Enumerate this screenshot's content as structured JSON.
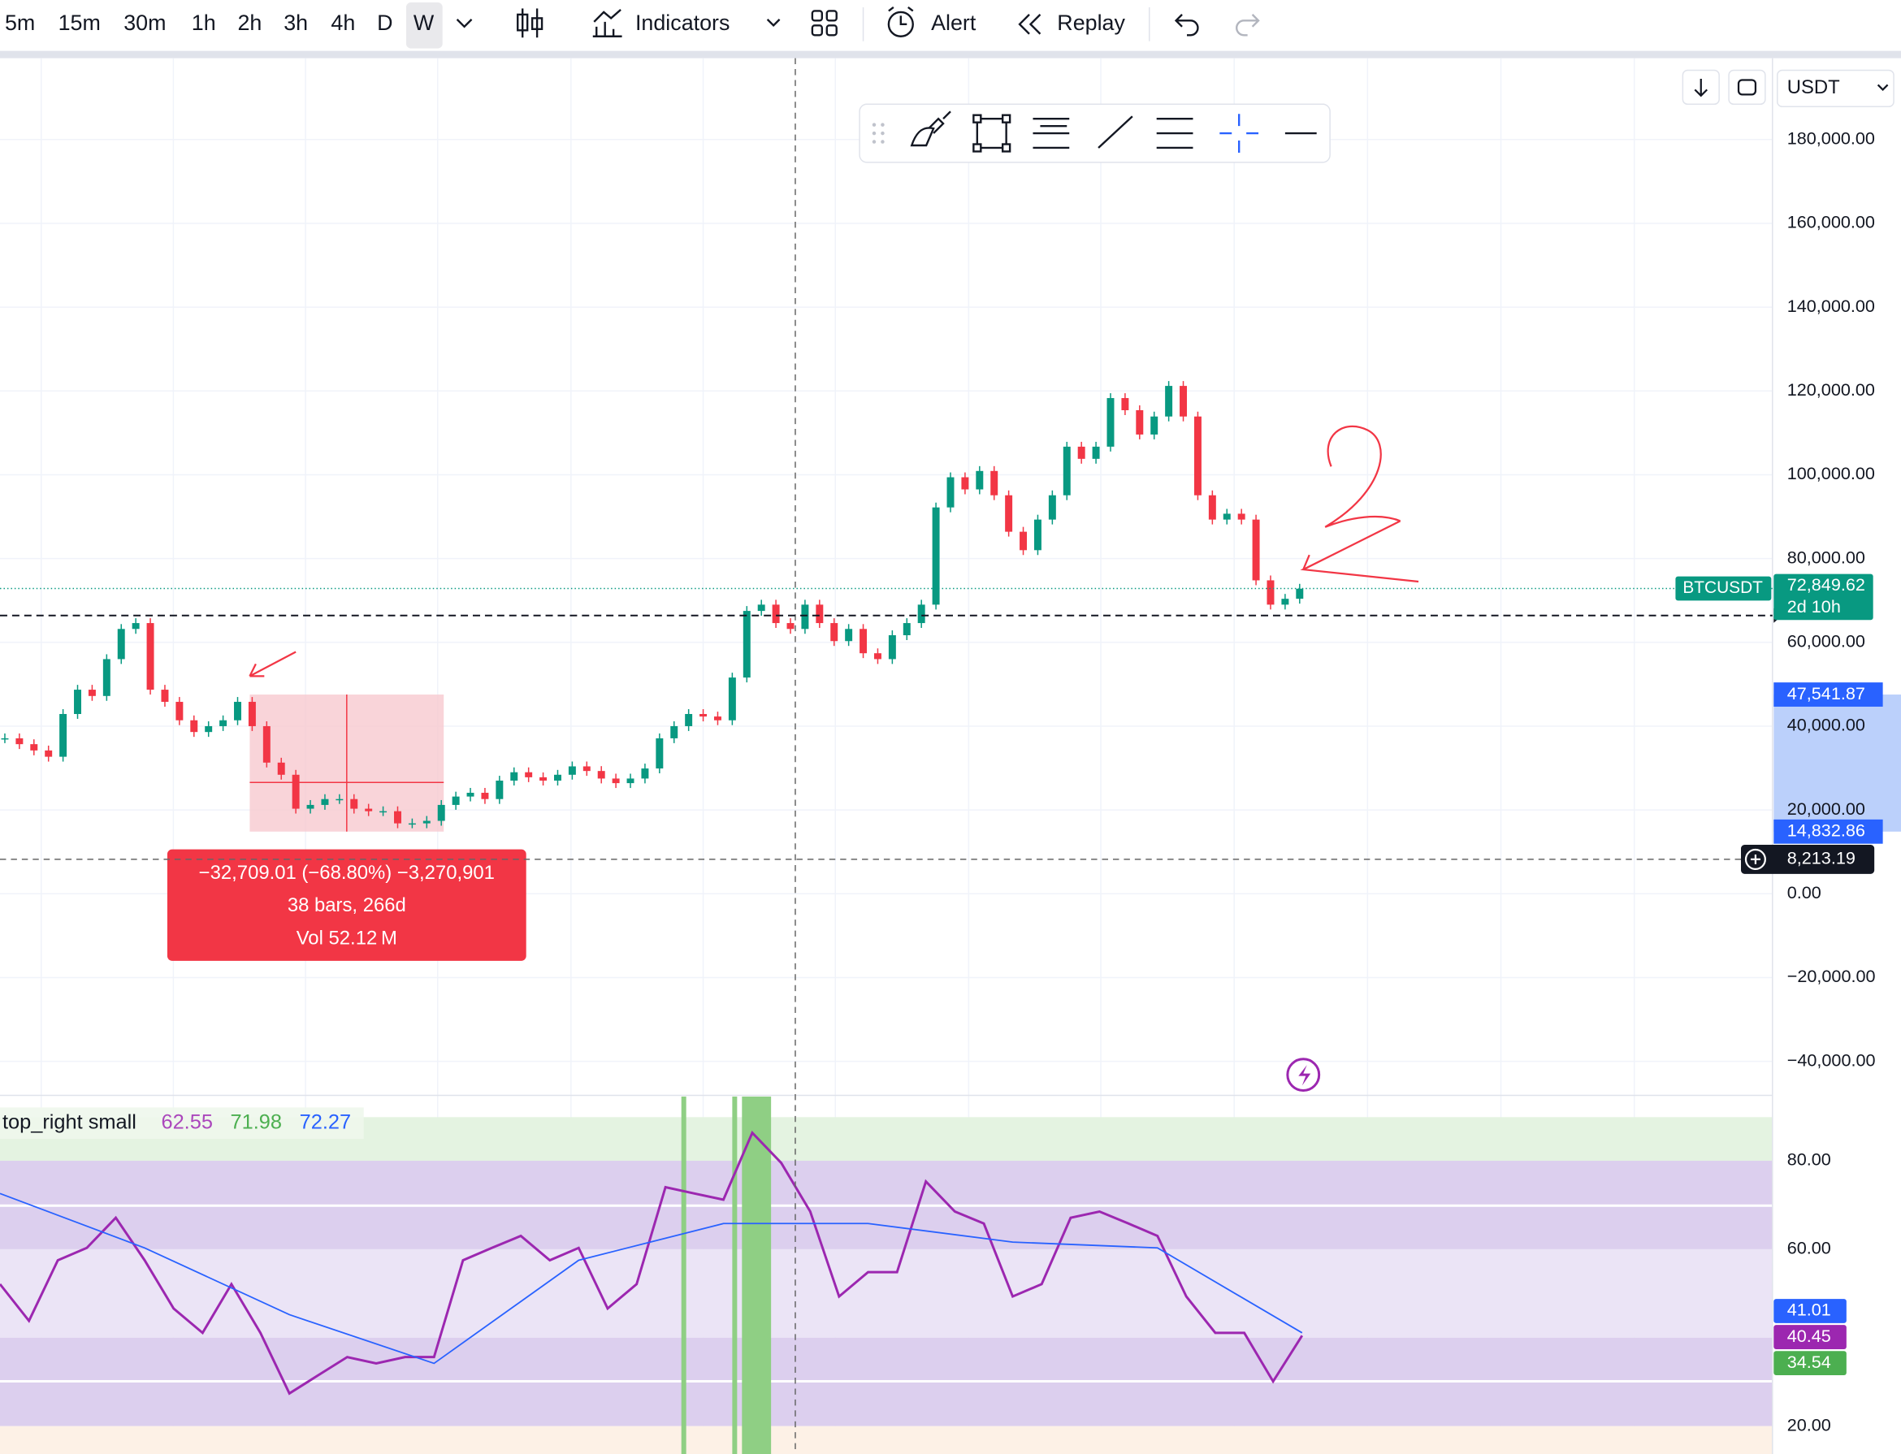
{
  "toolbar": {
    "intervals": [
      "5m",
      "15m",
      "30m",
      "1h",
      "2h",
      "3h",
      "4h",
      "D",
      "W"
    ],
    "indicators": "Indicators",
    "alert": "Alert",
    "replay": "Replay",
    "currency": "USDT"
  },
  "price_chart": {
    "ylim": [
      -48400,
      199420
    ],
    "yticks": [
      {
        "value": -40000,
        "label": "−40,000.00"
      },
      {
        "value": -20000,
        "label": "−20,000.00"
      },
      {
        "value": 0,
        "label": "0.00"
      },
      {
        "value": 20000,
        "label": "20,000.00"
      },
      {
        "value": 40000,
        "label": "40,000.00"
      },
      {
        "value": 60000,
        "label": "60,000.00"
      },
      {
        "value": 80000,
        "label": "80,000.00"
      },
      {
        "value": 100000,
        "label": "100,000.00"
      },
      {
        "value": 120000,
        "label": "120,000.00"
      },
      {
        "value": 140000,
        "label": "140,000.00"
      },
      {
        "value": 160000,
        "label": "160,000.00"
      },
      {
        "value": 180000,
        "label": "180,000.00"
      }
    ],
    "symbol": "BTCUSDT",
    "last_price": {
      "value": 72849.62,
      "label": "72,849.62"
    },
    "countdown": "2d 10h",
    "range_high": {
      "value": 47541.87,
      "label": "47,541.87"
    },
    "range_low": {
      "value": 14832.86,
      "label": "14,832.86"
    },
    "crosshair_price": {
      "value": 8213.19,
      "label": "8,213.19"
    },
    "up_color": "#089981",
    "down_color": "#f23645",
    "closes": [
      37100,
      35700,
      34200,
      32700,
      42900,
      48700,
      47200,
      56000,
      63200,
      64600,
      48700,
      45800,
      41400,
      38600,
      40000,
      41400,
      45800,
      40000,
      31300,
      28400,
      20300,
      21200,
      22600,
      22600,
      20300,
      19700,
      19700,
      16800,
      16800,
      17400,
      21200,
      23200,
      24100,
      22600,
      27000,
      29000,
      27800,
      27000,
      28400,
      30400,
      29300,
      27500,
      26400,
      27500,
      29900,
      37100,
      40000,
      42900,
      42300,
      41400,
      51600,
      67500,
      69000,
      64600,
      63200,
      69000,
      64600,
      60300,
      63200,
      57400,
      56000,
      61700,
      64600,
      69000,
      92200,
      99400,
      96500,
      100900,
      95100,
      86400,
      82000,
      89300,
      95100,
      106700,
      103800,
      106700,
      118300,
      115400,
      109600,
      113900,
      121200,
      113900,
      95100,
      89300,
      90700,
      89300,
      74800,
      69000,
      70400,
      72800
    ]
  },
  "measurement": {
    "line1": "−32,709.01 (−68.80%) −3,270,901",
    "line2": "38 bars, 266d",
    "line3": "Vol 52.12 M"
  },
  "rsi": {
    "legend": "top_right small",
    "legend_values": [
      62.55,
      71.98,
      72.27
    ],
    "legend_colors": [
      "#ab47bc",
      "#4caf50",
      "#2962ff"
    ],
    "ylim": [
      13.7,
      94.5
    ],
    "yticks": [
      {
        "value": 20,
        "label": "20.00"
      },
      {
        "value": 60,
        "label": "60.00"
      },
      {
        "value": 80,
        "label": "80.00"
      }
    ],
    "series": [
      {
        "color": "#9c27b0",
        "values": [
          52.1,
          43.8,
          57.5,
          60.3,
          67.1,
          57.5,
          46.6,
          41.1,
          52.1,
          41.1,
          27.4,
          31.5,
          35.6,
          34.2,
          35.6,
          35.6,
          57.5,
          60.3,
          63.0,
          57.5,
          60.3,
          46.6,
          52.1,
          74.0,
          72.6,
          71.2,
          86.3,
          79.5,
          68.5,
          49.3,
          54.8,
          54.8,
          75.3,
          68.5,
          65.8,
          49.3,
          52.1,
          67.1,
          68.5,
          65.8,
          63.0,
          49.3,
          41.1,
          41.1,
          30.1,
          40.45
        ]
      },
      {
        "color": "#2962ff",
        "values": [
          72.6,
          60.3,
          45.2,
          34.2,
          57.5,
          65.8,
          65.8,
          61.6,
          60.3,
          41.1
        ]
      }
    ],
    "last_labels": [
      {
        "value": 41.01,
        "label": "41.01",
        "color": "#2962ff"
      },
      {
        "value": 40.45,
        "label": "40.45",
        "color": "#9c27b0"
      },
      {
        "value": 34.54,
        "label": "34.54",
        "color": "#4caf50"
      }
    ]
  }
}
